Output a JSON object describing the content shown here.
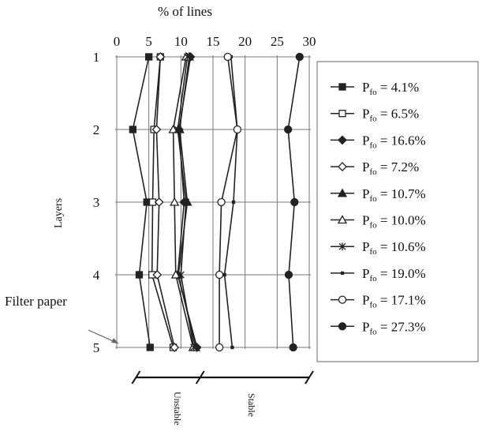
{
  "chart_data": {
    "type": "line",
    "orientation": "horizontal",
    "x_axis_title": "% of lines",
    "y_axis_title": "Layers",
    "x_ticks": [
      "0",
      "5",
      "10",
      "15",
      "20",
      "25",
      "30"
    ],
    "xlim": [
      0,
      30
    ],
    "y_ticks": [
      "1",
      "2",
      "3",
      "4",
      "5"
    ],
    "ylim": [
      1,
      5
    ],
    "grid": true,
    "legend_position": "right",
    "series": [
      {
        "name": "Pfo = 4.1%",
        "label_main": "P",
        "label_sub": "fo",
        "label_rest": " = 4.1%",
        "marker": "square-filled",
        "values": [
          5,
          2.5,
          4.7,
          3.5,
          5.2
        ]
      },
      {
        "name": "Pfo = 6.5%",
        "label_main": "P",
        "label_sub": "fo",
        "label_rest": " = 6.5%",
        "marker": "square-open",
        "values": [
          6.8,
          5.8,
          5.6,
          5.5,
          8.8
        ]
      },
      {
        "name": "Pfo = 16.6%",
        "label_main": "P",
        "label_sub": "fo",
        "label_rest": " = 16.6%",
        "marker": "diamond-filled",
        "values": [
          11.5,
          9.7,
          10.5,
          9.5,
          12.5
        ]
      },
      {
        "name": "Pfo = 7.2%",
        "label_main": "P",
        "label_sub": "fo",
        "label_rest": " = 7.2%",
        "marker": "diamond-open",
        "values": [
          6.8,
          6.2,
          6.6,
          6.3,
          9.0
        ]
      },
      {
        "name": "Pfo = 10.7%",
        "label_main": "P",
        "label_sub": "fo",
        "label_rest": " = 10.7%",
        "marker": "triangle-filled",
        "values": [
          11.3,
          9.8,
          11.0,
          9.6,
          12.3
        ]
      },
      {
        "name": "Pfo = 10.0%",
        "label_main": "P",
        "label_sub": "fo",
        "label_rest": " = 10.0%",
        "marker": "triangle-open",
        "values": [
          10.8,
          8.8,
          9.0,
          9.2,
          11.9
        ]
      },
      {
        "name": "Pfo = 10.6%",
        "label_main": "P",
        "label_sub": "fo",
        "label_rest": " = 10.6%",
        "marker": "star",
        "values": [
          11.0,
          9.5,
          10.8,
          10.0,
          12.0
        ]
      },
      {
        "name": "Pfo = 19.0%",
        "label_main": "P",
        "label_sub": "fo",
        "label_rest": " = 19.0%",
        "marker": "dash",
        "values": [
          17.8,
          18.8,
          18.2,
          16.8,
          18.0
        ]
      },
      {
        "name": "Pfo = 17.1%",
        "label_main": "P",
        "label_sub": "fo",
        "label_rest": " = 17.1%",
        "marker": "circle-open",
        "values": [
          17.3,
          18.8,
          16.3,
          16.0,
          16.0
        ]
      },
      {
        "name": "Pfo = 27.3%",
        "label_main": "P",
        "label_sub": "fo",
        "label_rest": " = 27.3%",
        "marker": "circle-filled",
        "values": [
          28.5,
          26.7,
          27.7,
          26.8,
          27.5
        ]
      }
    ],
    "annotations": [
      {
        "text": "Filter paper",
        "points_to_layer": 5
      }
    ],
    "stability_scale": {
      "unstable_label": "Unstable",
      "stable_label": "Stable",
      "breaks": [
        3,
        13,
        30
      ]
    }
  }
}
